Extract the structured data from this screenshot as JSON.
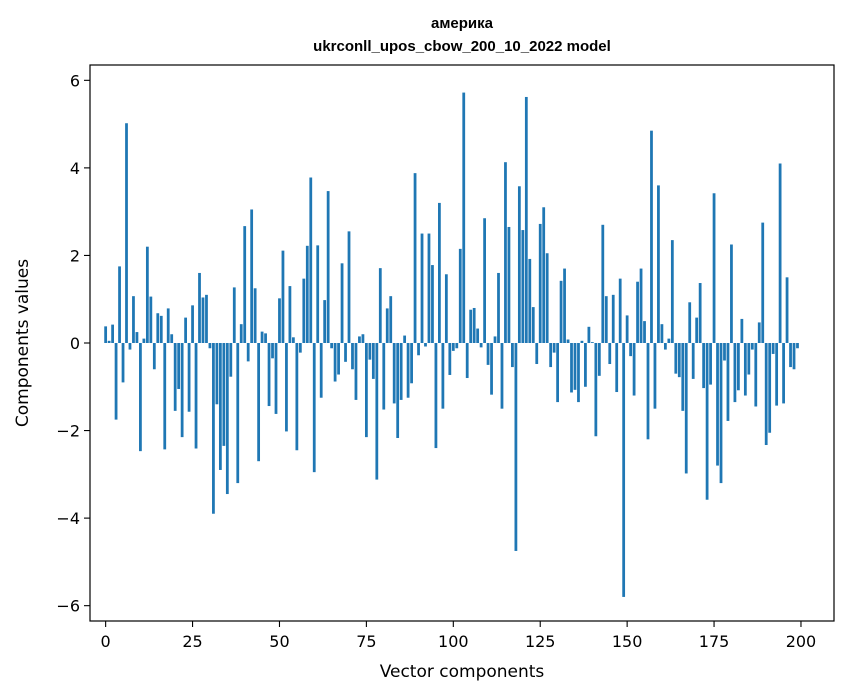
{
  "chart_data": {
    "type": "bar",
    "title_line1": "америка",
    "title_line2": "ukrconll_upos_cbow_200_10_2022 model",
    "xlabel": "Vector components",
    "ylabel": "Components values",
    "xlim": [
      -4.5,
      209.5
    ],
    "ylim": [
      -6.35,
      6.35
    ],
    "x_ticks": [
      0,
      25,
      50,
      75,
      100,
      125,
      150,
      175,
      200
    ],
    "y_ticks": [
      -6,
      -4,
      -2,
      0,
      2,
      4,
      6
    ],
    "y_tick_labels": [
      "−6",
      "−4",
      "−2",
      "0",
      "2",
      "4",
      "6"
    ],
    "grid": false,
    "bar_color": "#1f77b4",
    "values": [
      0.38,
      0.05,
      0.42,
      -1.75,
      1.75,
      -0.9,
      5.02,
      -0.15,
      1.07,
      0.25,
      -2.47,
      0.1,
      2.2,
      1.06,
      -0.6,
      0.68,
      0.62,
      -2.43,
      0.79,
      0.2,
      -1.55,
      -1.05,
      -2.15,
      0.58,
      -1.57,
      0.86,
      -2.41,
      1.6,
      1.04,
      1.1,
      -0.12,
      -3.9,
      -1.4,
      -2.9,
      -2.35,
      -3.45,
      -0.77,
      1.27,
      -3.2,
      0.43,
      2.67,
      -0.42,
      3.05,
      1.25,
      -2.7,
      0.26,
      0.22,
      -1.44,
      -0.35,
      -1.62,
      1.02,
      2.11,
      -2.02,
      1.3,
      0.13,
      -2.45,
      -0.22,
      1.47,
      2.22,
      3.78,
      -2.95,
      2.23,
      -1.25,
      0.98,
      3.47,
      -0.12,
      -0.88,
      -0.72,
      1.82,
      -0.43,
      2.55,
      -0.6,
      -1.3,
      0.15,
      0.2,
      -2.15,
      -0.38,
      -0.82,
      -3.12,
      1.71,
      -1.52,
      0.79,
      1.07,
      -1.38,
      -2.17,
      -1.3,
      0.17,
      -1.25,
      -0.92,
      3.88,
      -0.28,
      2.5,
      -0.08,
      2.5,
      1.78,
      -2.4,
      3.2,
      -1.5,
      1.57,
      -0.73,
      -0.18,
      -0.12,
      2.15,
      5.72,
      -0.8,
      0.76,
      0.8,
      0.33,
      -0.1,
      2.85,
      -0.5,
      -1.18,
      0.15,
      1.6,
      -1.5,
      4.13,
      2.65,
      -0.55,
      -4.75,
      3.58,
      2.58,
      5.62,
      1.92,
      0.82,
      -0.48,
      2.72,
      3.1,
      2.05,
      -0.55,
      -0.22,
      -1.35,
      1.42,
      1.7,
      0.08,
      -1.13,
      -1.07,
      -1.35,
      0.05,
      -1.0,
      0.37,
      0.02,
      -2.13,
      -0.75,
      2.7,
      1.07,
      -0.48,
      1.1,
      -1.12,
      1.47,
      -5.8,
      0.63,
      -0.3,
      -1.2,
      1.4,
      1.7,
      0.5,
      -2.2,
      4.85,
      -1.5,
      3.6,
      0.43,
      -0.15,
      0.1,
      2.35,
      -0.7,
      -0.78,
      -1.55,
      -2.98,
      0.93,
      -0.82,
      0.58,
      1.37,
      -1.03,
      -3.58,
      -0.95,
      3.42,
      -2.8,
      -3.2,
      -0.4,
      -1.78,
      2.25,
      -1.35,
      -1.08,
      0.55,
      -1.2,
      -0.72,
      -0.15,
      -1.45,
      0.47,
      2.75,
      -2.33,
      -2.05,
      -0.25,
      -1.43,
      4.1,
      -1.38,
      1.5,
      -0.55,
      -0.6,
      -0.12
    ]
  }
}
